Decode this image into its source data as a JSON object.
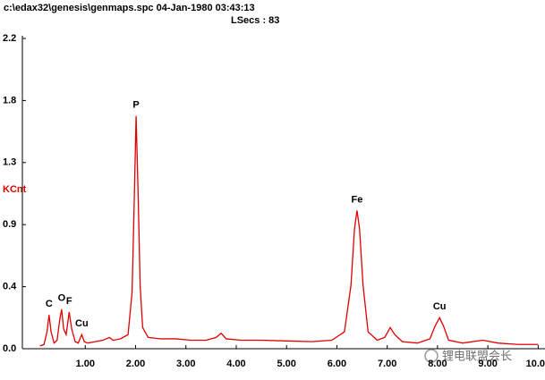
{
  "chart_data": {
    "type": "line",
    "title": "c:\\edax32\\genesis\\genmaps.spc  04-Jan-1980 03:43:13",
    "subtitle": "LSecs :  83",
    "y_label": "KCnt",
    "watermark": "锂电联盟会长",
    "x": [
      0.1,
      0.18,
      0.24,
      0.28,
      0.32,
      0.38,
      0.44,
      0.49,
      0.53,
      0.57,
      0.62,
      0.68,
      0.73,
      0.8,
      0.86,
      0.93,
      0.98,
      1.05,
      1.2,
      1.35,
      1.48,
      1.55,
      1.7,
      1.85,
      1.93,
      1.97,
      2.01,
      2.05,
      2.09,
      2.14,
      2.25,
      2.5,
      2.8,
      3.1,
      3.4,
      3.6,
      3.7,
      3.8,
      4.1,
      4.5,
      5.0,
      5.5,
      5.9,
      6.15,
      6.28,
      6.35,
      6.4,
      6.45,
      6.52,
      6.62,
      6.8,
      6.95,
      7.06,
      7.15,
      7.3,
      7.6,
      7.85,
      7.95,
      8.04,
      8.12,
      8.22,
      8.5,
      8.9,
      9.2,
      9.6,
      10.0
    ],
    "series": [
      {
        "color": "#e00000",
        "values": [
          0.02,
          0.03,
          0.12,
          0.24,
          0.12,
          0.04,
          0.06,
          0.2,
          0.28,
          0.14,
          0.1,
          0.26,
          0.14,
          0.05,
          0.04,
          0.1,
          0.05,
          0.04,
          0.05,
          0.06,
          0.08,
          0.06,
          0.07,
          0.1,
          0.4,
          1.0,
          1.65,
          1.1,
          0.45,
          0.15,
          0.08,
          0.07,
          0.07,
          0.06,
          0.06,
          0.08,
          0.11,
          0.07,
          0.06,
          0.06,
          0.055,
          0.05,
          0.06,
          0.12,
          0.45,
          0.85,
          0.98,
          0.85,
          0.45,
          0.12,
          0.06,
          0.08,
          0.15,
          0.1,
          0.05,
          0.04,
          0.07,
          0.16,
          0.22,
          0.16,
          0.06,
          0.04,
          0.06,
          0.04,
          0.03,
          0.03
        ]
      }
    ],
    "annotations": [
      {
        "text": "C",
        "x": 0.28,
        "y": 0.24
      },
      {
        "text": "O",
        "x": 0.53,
        "y": 0.28
      },
      {
        "text": "F",
        "x": 0.68,
        "y": 0.26
      },
      {
        "text": "Cu",
        "x": 0.93,
        "y": 0.1
      },
      {
        "text": "P",
        "x": 2.01,
        "y": 1.65
      },
      {
        "text": "Fe",
        "x": 6.4,
        "y": 0.98
      },
      {
        "text": "Cu",
        "x": 8.04,
        "y": 0.22
      }
    ],
    "xlim": [
      -0.25,
      10.1
    ],
    "ylim": [
      0,
      2.2
    ],
    "xticks": [
      {
        "value": 1,
        "label": "1.00"
      },
      {
        "value": 2,
        "label": "2.00"
      },
      {
        "value": 3,
        "label": "3.00"
      },
      {
        "value": 4,
        "label": "4.00"
      },
      {
        "value": 5,
        "label": "5.00"
      },
      {
        "value": 6,
        "label": "6.00"
      },
      {
        "value": 7,
        "label": "7.00"
      },
      {
        "value": 8,
        "label": "8.00"
      },
      {
        "value": 9,
        "label": "9.00"
      },
      {
        "value": 10,
        "label": "10.00"
      }
    ],
    "yticks": [
      {
        "value": 0,
        "label": "0.0"
      },
      {
        "value": 0.44,
        "label": "0.4"
      },
      {
        "value": 0.88,
        "label": "0.9"
      },
      {
        "value": 1.32,
        "label": "1.3"
      },
      {
        "value": 1.76,
        "label": "1.8"
      },
      {
        "value": 2.2,
        "label": "2.2"
      }
    ]
  }
}
